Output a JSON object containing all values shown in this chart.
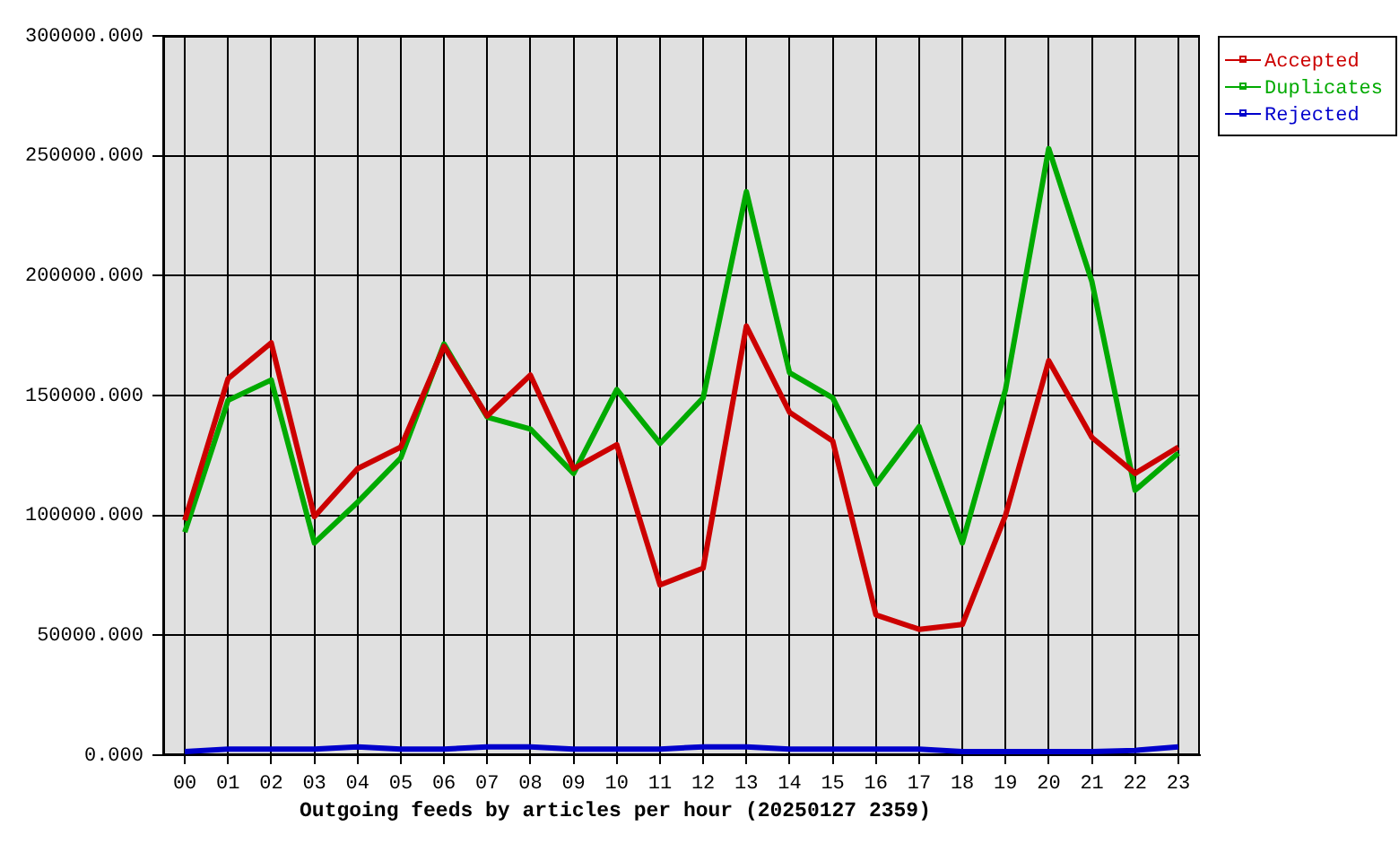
{
  "chart_data": {
    "type": "line",
    "xlabel": "Outgoing feeds by articles per hour (20250127 2359)",
    "categories": [
      "00",
      "01",
      "02",
      "03",
      "04",
      "05",
      "06",
      "07",
      "08",
      "09",
      "10",
      "11",
      "12",
      "13",
      "14",
      "15",
      "16",
      "17",
      "18",
      "19",
      "20",
      "21",
      "22",
      "23"
    ],
    "series": [
      {
        "name": "Accepted",
        "color": "#cc0000",
        "values": [
          98000,
          157000,
          172000,
          99500,
          119500,
          128500,
          170500,
          141500,
          158500,
          119500,
          129500,
          71000,
          78000,
          179000,
          143000,
          131000,
          58500,
          52500,
          54500,
          100000,
          164500,
          132500,
          117500,
          128500
        ]
      },
      {
        "name": "Duplicates",
        "color": "#00aa00",
        "values": [
          93000,
          148000,
          156500,
          88500,
          105500,
          124000,
          171500,
          141000,
          136000,
          117500,
          152500,
          130000,
          149000,
          235000,
          159500,
          149000,
          113000,
          137000,
          88500,
          152500,
          253000,
          197500,
          110500,
          126000
        ]
      },
      {
        "name": "Rejected",
        "color": "#0000cc",
        "values": [
          1500,
          2500,
          2500,
          2500,
          3500,
          2500,
          2500,
          3500,
          3500,
          2500,
          2500,
          2500,
          3500,
          3500,
          2500,
          2500,
          2500,
          2500,
          1500,
          1500,
          1500,
          1500,
          2000,
          3500
        ]
      }
    ],
    "ylim": [
      0,
      300000
    ],
    "yticks": [
      {
        "value": 0,
        "label": "0.000"
      },
      {
        "value": 50000,
        "label": "50000.000"
      },
      {
        "value": 100000,
        "label": "100000.000"
      },
      {
        "value": 150000,
        "label": "150000.000"
      },
      {
        "value": 200000,
        "label": "200000.000"
      },
      {
        "value": 250000,
        "label": "250000.000"
      },
      {
        "value": 300000,
        "label": "300000.000"
      }
    ],
    "grid": true,
    "legend": "top right"
  }
}
